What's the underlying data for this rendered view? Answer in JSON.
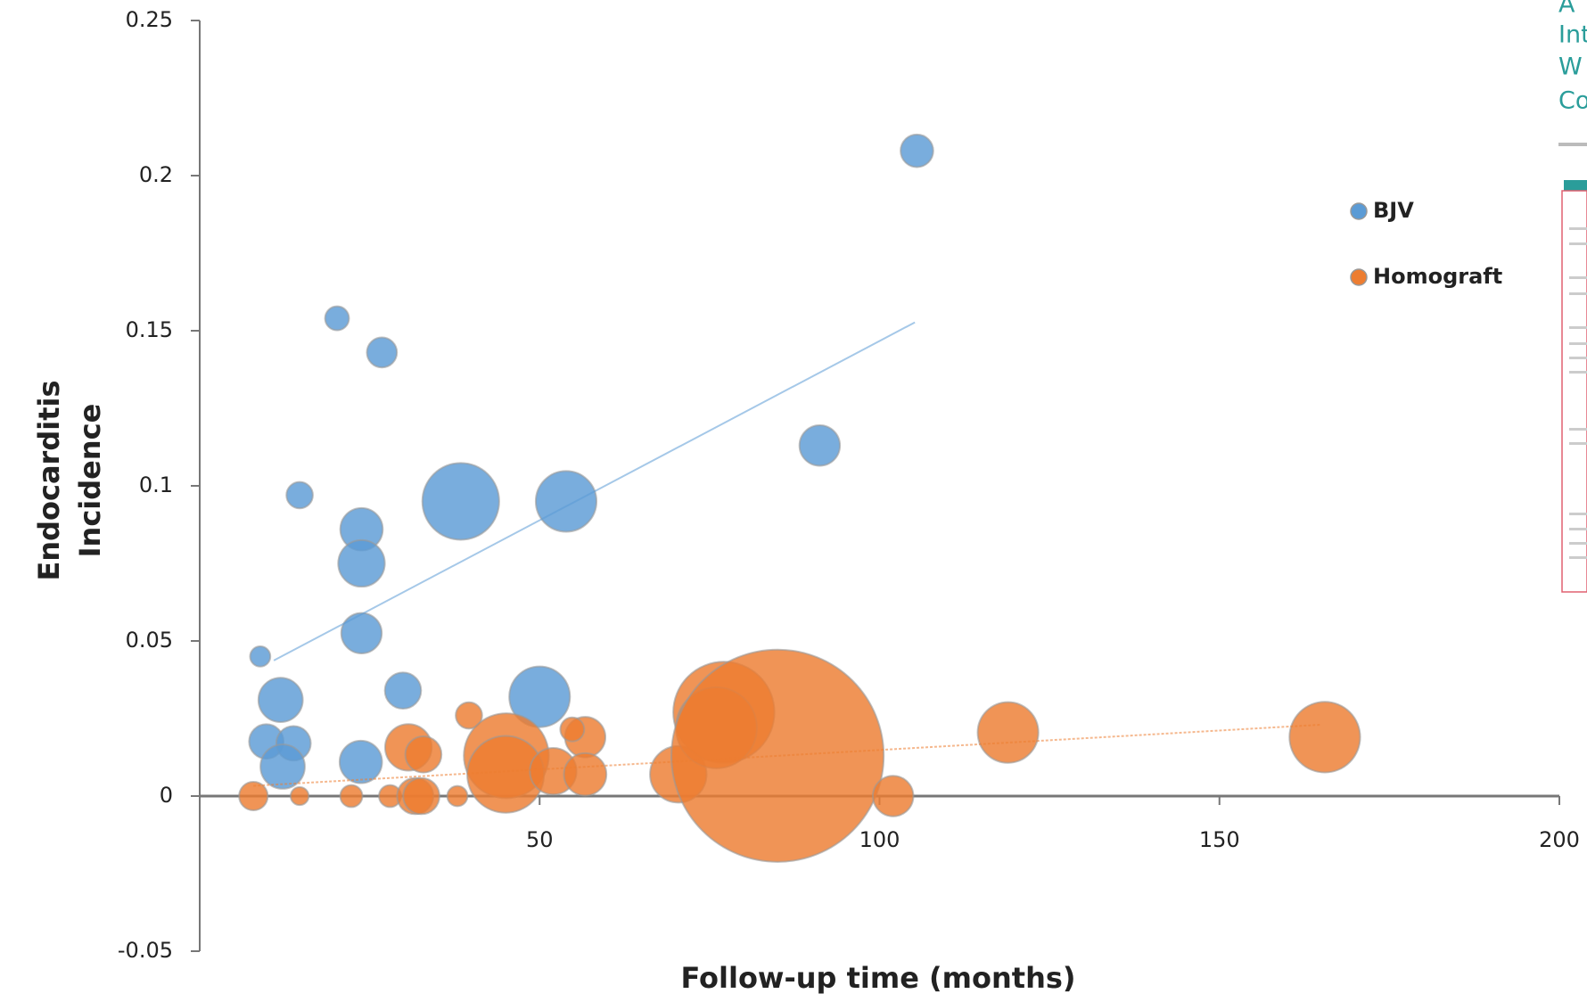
{
  "chart_data": {
    "type": "bubble",
    "xlabel": "Follow-up time (months)",
    "ylabel": [
      "Endocarditis",
      "Incidence"
    ],
    "xlim": [
      0,
      200
    ],
    "xticks": [
      50,
      100,
      150,
      200
    ],
    "ylim": [
      -0.05,
      0.25
    ],
    "yticks": [
      0.25,
      0.2,
      0.15,
      0.1,
      0.05,
      0,
      -0.05
    ],
    "legend": "right",
    "series": [
      {
        "name": "BJV",
        "color": "#5b9bd5",
        "x": [
          8.9,
          14.7,
          20.2,
          26.8,
          23.8,
          23.8,
          23.8,
          38.4,
          53.9,
          91.2,
          105.5,
          11.9,
          9.8,
          13.8,
          12.2,
          23.7,
          29.9,
          50
        ],
        "values": [
          0.045,
          0.097,
          0.154,
          0.143,
          0.086,
          0.075,
          0.0525,
          0.095,
          0.095,
          0.113,
          0.208,
          0.031,
          0.0176,
          0.017,
          0.0095,
          0.011,
          0.034,
          0.032
        ],
        "sizes": [
          10,
          17,
          14,
          22,
          44,
          53,
          40,
          144,
          90,
          40,
          26,
          48,
          29,
          29,
          48,
          44,
          32,
          90
        ],
        "trend_x": [
          10.9,
          105.2
        ],
        "trend_y": [
          0.0437,
          0.1527
        ]
      },
      {
        "name": "Homograft",
        "color": "#ed7d31",
        "x": [
          7.9,
          14.7,
          22.3,
          28,
          31.7,
          32.6,
          37.9,
          30.7,
          32.9,
          39.6,
          45.1,
          45,
          52,
          56.7,
          54.8,
          56.7,
          70.4,
          77.1,
          76,
          85,
          102,
          118.9,
          165.5
        ],
        "values": [
          0,
          0,
          0,
          0,
          0,
          0,
          0,
          0.0157,
          0.0134,
          0.026,
          0.013,
          0.007,
          0.008,
          0.019,
          0.0215,
          0.007,
          0.007,
          0.027,
          0.022,
          0.013,
          0,
          0.0205,
          0.019
        ],
        "sizes": [
          20,
          8,
          12,
          12,
          32,
          32,
          10,
          53,
          32,
          17,
          176,
          144,
          53,
          40,
          14,
          44,
          78,
          250,
          160,
          1100,
          40,
          90,
          122
        ],
        "trend_x": [
          7.9,
          164.9
        ],
        "trend_y": [
          0.0033,
          0.023
        ]
      }
    ]
  },
  "side_panel": {
    "lines": [
      "A",
      "Int",
      "W",
      "Co"
    ]
  }
}
